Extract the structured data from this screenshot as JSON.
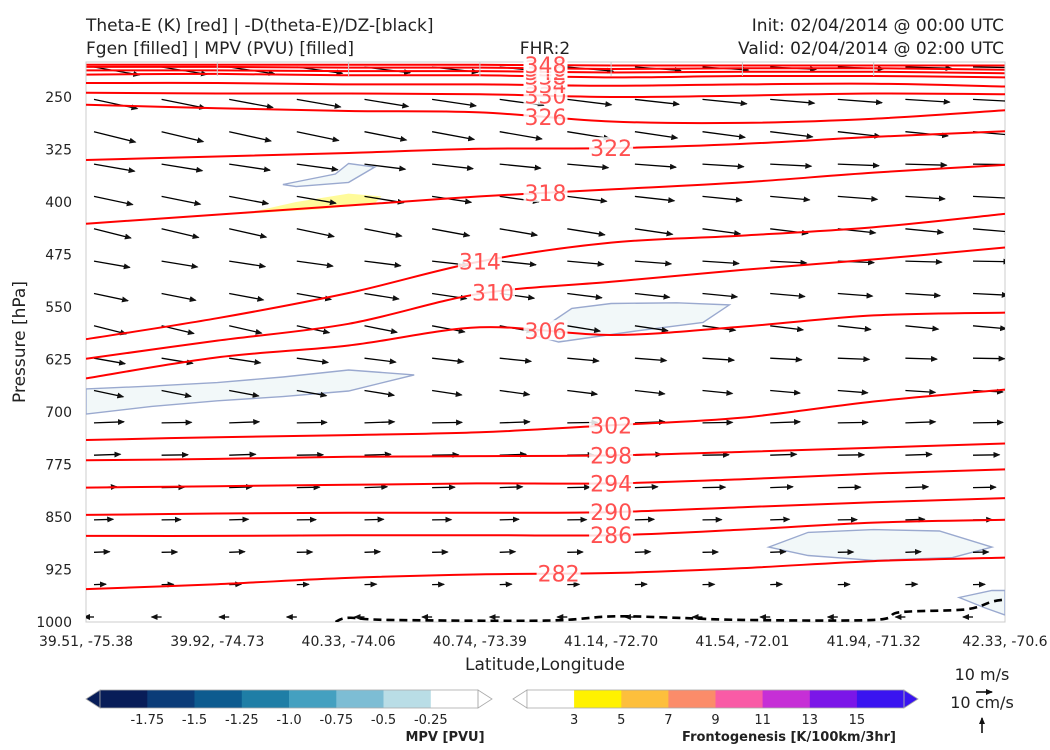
{
  "header": {
    "title_left_1": "Theta-E (K) [red] | -D(theta-E)/DZ-[black]",
    "title_left_2": "Fgen [filled] | MPV (PVU) [filled]",
    "fhr": "FHR:2",
    "init": "Init: 02/04/2014 @ 00:00 UTC",
    "valid": "Valid: 02/04/2014 @ 02:00 UTC"
  },
  "axes": {
    "xlabel": "Latitude,Longitude",
    "ylabel": "Pressure [hPa]",
    "xticks": [
      "39.51, -75.38",
      "39.92, -74.73",
      "40.33, -74.06",
      "40.74, -73.39",
      "41.14, -72.70",
      "41.54, -72.01",
      "41.94, -71.32",
      "42.33, -70.6"
    ],
    "yticks": [
      "250",
      "325",
      "400",
      "475",
      "550",
      "625",
      "700",
      "775",
      "850",
      "925",
      "1000"
    ]
  },
  "colorbars": {
    "mpv": {
      "title": "MPV [PVU]",
      "ticks": [
        "-1.75",
        "-1.5",
        "-1.25",
        "-1.0",
        "-0.75",
        "-0.5",
        "-0.25"
      ],
      "colors": [
        "#081d58",
        "#0b3c78",
        "#0d5b8f",
        "#1f7ea6",
        "#44a0c0",
        "#7dbdd4",
        "#b9dde6",
        "#ffffff"
      ]
    },
    "fgen": {
      "title": "Frontogenesis [K/100km/3hr]",
      "ticks": [
        "3",
        "5",
        "7",
        "9",
        "11",
        "13",
        "15"
      ],
      "colors": [
        "#ffffff",
        "#fff200",
        "#fdbf3c",
        "#fb8c6a",
        "#f95ba6",
        "#c62fd6",
        "#7b16e8",
        "#3a14f0"
      ]
    }
  },
  "reference": {
    "label1": "10 m/s",
    "label2": "10 cm/s"
  },
  "chart_data": {
    "type": "cross-section",
    "y_scale": "pressure (inverted)",
    "ylim": [
      1000,
      200
    ],
    "xlim": [
      0,
      7
    ],
    "contour_color": "#ff0000",
    "label_color": "#ff5050",
    "theta_e_contours": [
      {
        "value": 282,
        "label": "282",
        "label_x": 3.6,
        "points": [
          [
            0,
            953
          ],
          [
            1,
            946
          ],
          [
            2,
            937
          ],
          [
            3,
            932
          ],
          [
            4,
            930
          ],
          [
            5,
            923
          ],
          [
            6,
            913
          ],
          [
            7,
            908
          ]
        ]
      },
      {
        "value": 286,
        "label": "286",
        "label_x": 4.0,
        "points": [
          [
            0,
            877
          ],
          [
            1,
            877
          ],
          [
            2,
            876
          ],
          [
            3,
            876
          ],
          [
            4,
            876
          ],
          [
            5,
            868
          ],
          [
            6,
            858
          ],
          [
            7,
            854
          ]
        ]
      },
      {
        "value": 290,
        "label": "290",
        "label_x": 4.0,
        "points": [
          [
            0,
            847
          ],
          [
            1,
            845
          ],
          [
            2,
            844
          ],
          [
            3,
            844
          ],
          [
            4,
            843
          ],
          [
            5,
            836
          ],
          [
            6,
            829
          ],
          [
            7,
            823
          ]
        ]
      },
      {
        "value": 294,
        "label": "294",
        "label_x": 4.0,
        "points": [
          [
            0,
            808
          ],
          [
            1,
            806
          ],
          [
            2,
            804
          ],
          [
            3,
            802
          ],
          [
            4,
            802
          ],
          [
            5,
            796
          ],
          [
            6,
            788
          ],
          [
            7,
            782
          ]
        ]
      },
      {
        "value": 298,
        "label": "298",
        "label_x": 4.0,
        "points": [
          [
            0,
            769
          ],
          [
            1,
            767
          ],
          [
            2,
            764
          ],
          [
            3,
            763
          ],
          [
            4,
            762
          ],
          [
            5,
            757
          ],
          [
            6,
            751
          ],
          [
            7,
            745
          ]
        ]
      },
      {
        "value": 302,
        "label": "302",
        "label_x": 4.0,
        "points": [
          [
            0,
            740
          ],
          [
            1,
            736
          ],
          [
            2,
            733
          ],
          [
            3,
            729
          ],
          [
            4,
            719
          ],
          [
            5,
            708
          ],
          [
            6,
            685
          ],
          [
            7,
            668
          ]
        ]
      },
      {
        "value": 306,
        "label": "306",
        "label_x": 3.5,
        "points": [
          [
            0,
            652
          ],
          [
            1,
            622
          ],
          [
            2,
            605
          ],
          [
            3,
            579
          ],
          [
            4,
            590
          ],
          [
            5,
            578
          ],
          [
            6,
            562
          ],
          [
            7,
            558
          ]
        ]
      },
      {
        "value": 310,
        "label": "310",
        "label_x": 3.1,
        "points": [
          [
            0,
            624
          ],
          [
            1,
            598
          ],
          [
            2,
            574
          ],
          [
            3,
            531
          ],
          [
            4,
            514
          ],
          [
            5,
            497
          ],
          [
            6,
            482
          ],
          [
            7,
            465
          ]
        ]
      },
      {
        "value": 314,
        "label": "314",
        "label_x": 3.0,
        "points": [
          [
            0,
            596
          ],
          [
            1,
            566
          ],
          [
            2,
            530
          ],
          [
            3,
            485
          ],
          [
            4,
            458
          ],
          [
            5,
            448
          ],
          [
            6,
            436
          ],
          [
            7,
            417
          ]
        ]
      },
      {
        "value": 318,
        "label": "318",
        "label_x": 3.5,
        "points": [
          [
            0,
            431
          ],
          [
            1,
            418
          ],
          [
            2,
            405
          ],
          [
            3,
            392
          ],
          [
            4,
            382
          ],
          [
            5,
            372
          ],
          [
            6,
            358
          ],
          [
            7,
            347
          ]
        ]
      },
      {
        "value": 322,
        "label": "322",
        "label_x": 4.0,
        "points": [
          [
            0,
            340
          ],
          [
            1,
            335
          ],
          [
            2,
            330
          ],
          [
            3,
            324
          ],
          [
            4,
            323
          ],
          [
            5,
            317
          ],
          [
            6,
            307
          ],
          [
            7,
            299
          ]
        ]
      },
      {
        "value": 326,
        "label": "326",
        "label_x": 3.5,
        "points": [
          [
            0,
            261
          ],
          [
            1,
            266
          ],
          [
            2,
            270
          ],
          [
            3,
            272
          ],
          [
            4,
            285
          ],
          [
            5,
            287
          ],
          [
            6,
            281
          ],
          [
            7,
            269
          ]
        ]
      },
      {
        "value": 330,
        "label": "330",
        "label_x": 3.5,
        "points": [
          [
            0,
            244
          ],
          [
            1,
            245
          ],
          [
            2,
            245
          ],
          [
            3,
            246
          ],
          [
            4,
            250
          ],
          [
            5,
            248
          ],
          [
            6,
            245
          ],
          [
            7,
            246
          ]
        ]
      },
      {
        "value": 334,
        "label": "334",
        "label_x": 3.5,
        "points": [
          [
            0,
            230
          ],
          [
            1,
            230
          ],
          [
            2,
            232
          ],
          [
            3,
            232
          ],
          [
            4,
            234
          ],
          [
            5,
            232
          ],
          [
            6,
            231
          ],
          [
            7,
            235
          ]
        ]
      },
      {
        "value": 338,
        "label": "338",
        "label_x": 3.5,
        "points": [
          [
            0,
            218
          ],
          [
            1,
            217
          ],
          [
            2,
            219
          ],
          [
            3,
            219
          ],
          [
            4,
            222
          ],
          [
            5,
            220
          ],
          [
            6,
            220
          ],
          [
            7,
            222
          ]
        ]
      },
      {
        "value": 342,
        "label": "342",
        "label_x": 3.5,
        "points": [
          [
            0,
            212
          ],
          [
            1,
            212
          ],
          [
            2,
            213
          ],
          [
            3,
            213
          ],
          [
            4,
            215
          ],
          [
            5,
            214
          ],
          [
            6,
            214
          ],
          [
            7,
            216
          ]
        ]
      },
      {
        "value": 346,
        "label": "346",
        "label_x": 3.5,
        "points": [
          [
            0,
            207
          ],
          [
            1,
            207
          ],
          [
            2,
            208
          ],
          [
            3,
            208
          ],
          [
            4,
            210
          ],
          [
            5,
            209
          ],
          [
            6,
            209
          ],
          [
            7,
            211
          ]
        ]
      },
      {
        "value": 348,
        "label": "348",
        "label_x": 3.5,
        "points": [
          [
            0,
            204
          ],
          [
            1,
            204
          ],
          [
            2,
            204
          ],
          [
            3,
            204
          ],
          [
            4,
            205
          ],
          [
            5,
            205
          ],
          [
            6,
            205
          ],
          [
            7,
            205
          ]
        ]
      }
    ],
    "stability_contour": {
      "style": "dashed",
      "color": "#000000",
      "points": [
        [
          1.9,
          1000
        ],
        [
          2.0,
          994
        ],
        [
          2.3,
          997
        ],
        [
          3.5,
          998
        ],
        [
          4.0,
          992
        ],
        [
          4.5,
          994
        ],
        [
          5.0,
          997
        ],
        [
          6.0,
          997
        ],
        [
          6.2,
          986
        ],
        [
          6.7,
          982
        ],
        [
          6.9,
          971
        ],
        [
          7,
          968
        ]
      ]
    },
    "mpv_regions": [
      {
        "level": "-0.25",
        "fill": "#f2f8f9",
        "stroke": "#9aa9cf",
        "points": [
          [
            0,
            667
          ],
          [
            0.5,
            663
          ],
          [
            1.0,
            658
          ],
          [
            1.5,
            650
          ],
          [
            2.0,
            640
          ],
          [
            2.5,
            647
          ],
          [
            2.0,
            670
          ],
          [
            1.5,
            678
          ],
          [
            1.0,
            684
          ],
          [
            0.5,
            692
          ],
          [
            0,
            703
          ]
        ]
      },
      {
        "level": "-0.25",
        "fill": "#f2f8f9",
        "stroke": "#9aa9cf",
        "points": [
          [
            3.4,
            590
          ],
          [
            3.7,
            552
          ],
          [
            4.0,
            545
          ],
          [
            4.5,
            544
          ],
          [
            4.9,
            547
          ],
          [
            4.7,
            572
          ],
          [
            4.2,
            584
          ],
          [
            3.6,
            600
          ],
          [
            3.4,
            590
          ]
        ]
      },
      {
        "level": "-0.25",
        "fill": "#f2f8f9",
        "stroke": "#9aa9cf",
        "points": [
          [
            1.5,
            375
          ],
          [
            1.9,
            360
          ],
          [
            2.0,
            345
          ],
          [
            2.2,
            350
          ],
          [
            2.0,
            372
          ],
          [
            1.6,
            378
          ],
          [
            1.5,
            375
          ]
        ]
      },
      {
        "level": "-0.25",
        "fill": "#f2f8f9",
        "stroke": "#9aa9cf",
        "points": [
          [
            5.2,
            893
          ],
          [
            5.5,
            872
          ],
          [
            6.0,
            868
          ],
          [
            6.5,
            870
          ],
          [
            6.9,
            893
          ],
          [
            6.6,
            908
          ],
          [
            6.0,
            912
          ],
          [
            5.5,
            905
          ],
          [
            5.2,
            893
          ]
        ]
      },
      {
        "level": "-0.25",
        "fill": "#f2f8f9",
        "stroke": "#9aa9cf",
        "points": [
          [
            6.65,
            965
          ],
          [
            6.9,
            955
          ],
          [
            7,
            955
          ],
          [
            7,
            990
          ],
          [
            6.85,
            980
          ]
        ]
      }
    ],
    "fgen_regions": [
      {
        "level": "3",
        "fill": "#fffb9a",
        "points": [
          [
            1.2,
            417
          ],
          [
            1.6,
            400
          ],
          [
            2.0,
            388
          ],
          [
            2.25,
            392
          ],
          [
            2.2,
            402
          ],
          [
            1.8,
            410
          ],
          [
            1.2,
            417
          ]
        ]
      }
    ],
    "vectors": {
      "columns": 14,
      "rows": 18,
      "color": "#000000"
    }
  }
}
